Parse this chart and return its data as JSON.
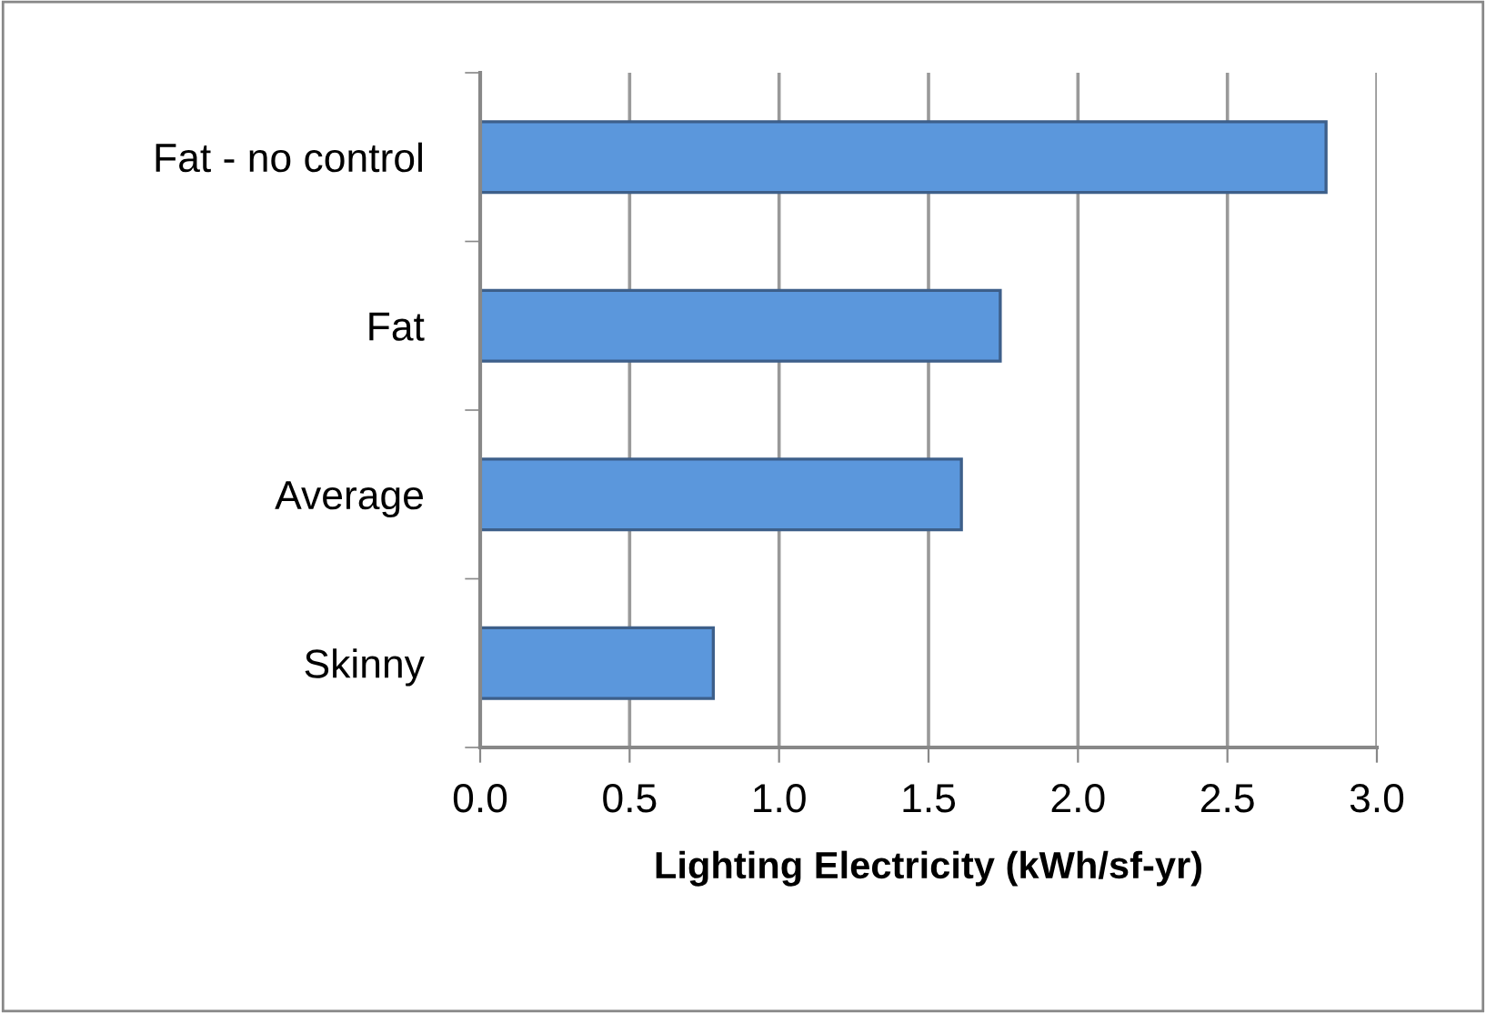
{
  "chart_data": {
    "type": "bar",
    "orientation": "horizontal",
    "xlabel": "Lighting Electricity (kWh/sf-yr)",
    "categories": [
      "Fat - no control",
      "Fat",
      "Average",
      "Skinny"
    ],
    "values": [
      2.83,
      1.74,
      1.61,
      0.78
    ],
    "color": "#5b97dc",
    "xlim": [
      0,
      3
    ],
    "xticks": [
      {
        "value": 0,
        "label": "0.0"
      },
      {
        "value": 0.5,
        "label": "0.5"
      },
      {
        "value": 1,
        "label": "1.0"
      },
      {
        "value": 1.5,
        "label": "1.5"
      },
      {
        "value": 2,
        "label": "2.0"
      },
      {
        "value": 2.5,
        "label": "2.5"
      },
      {
        "value": 3,
        "label": "3.0"
      }
    ],
    "grid": "x",
    "legend": false
  }
}
